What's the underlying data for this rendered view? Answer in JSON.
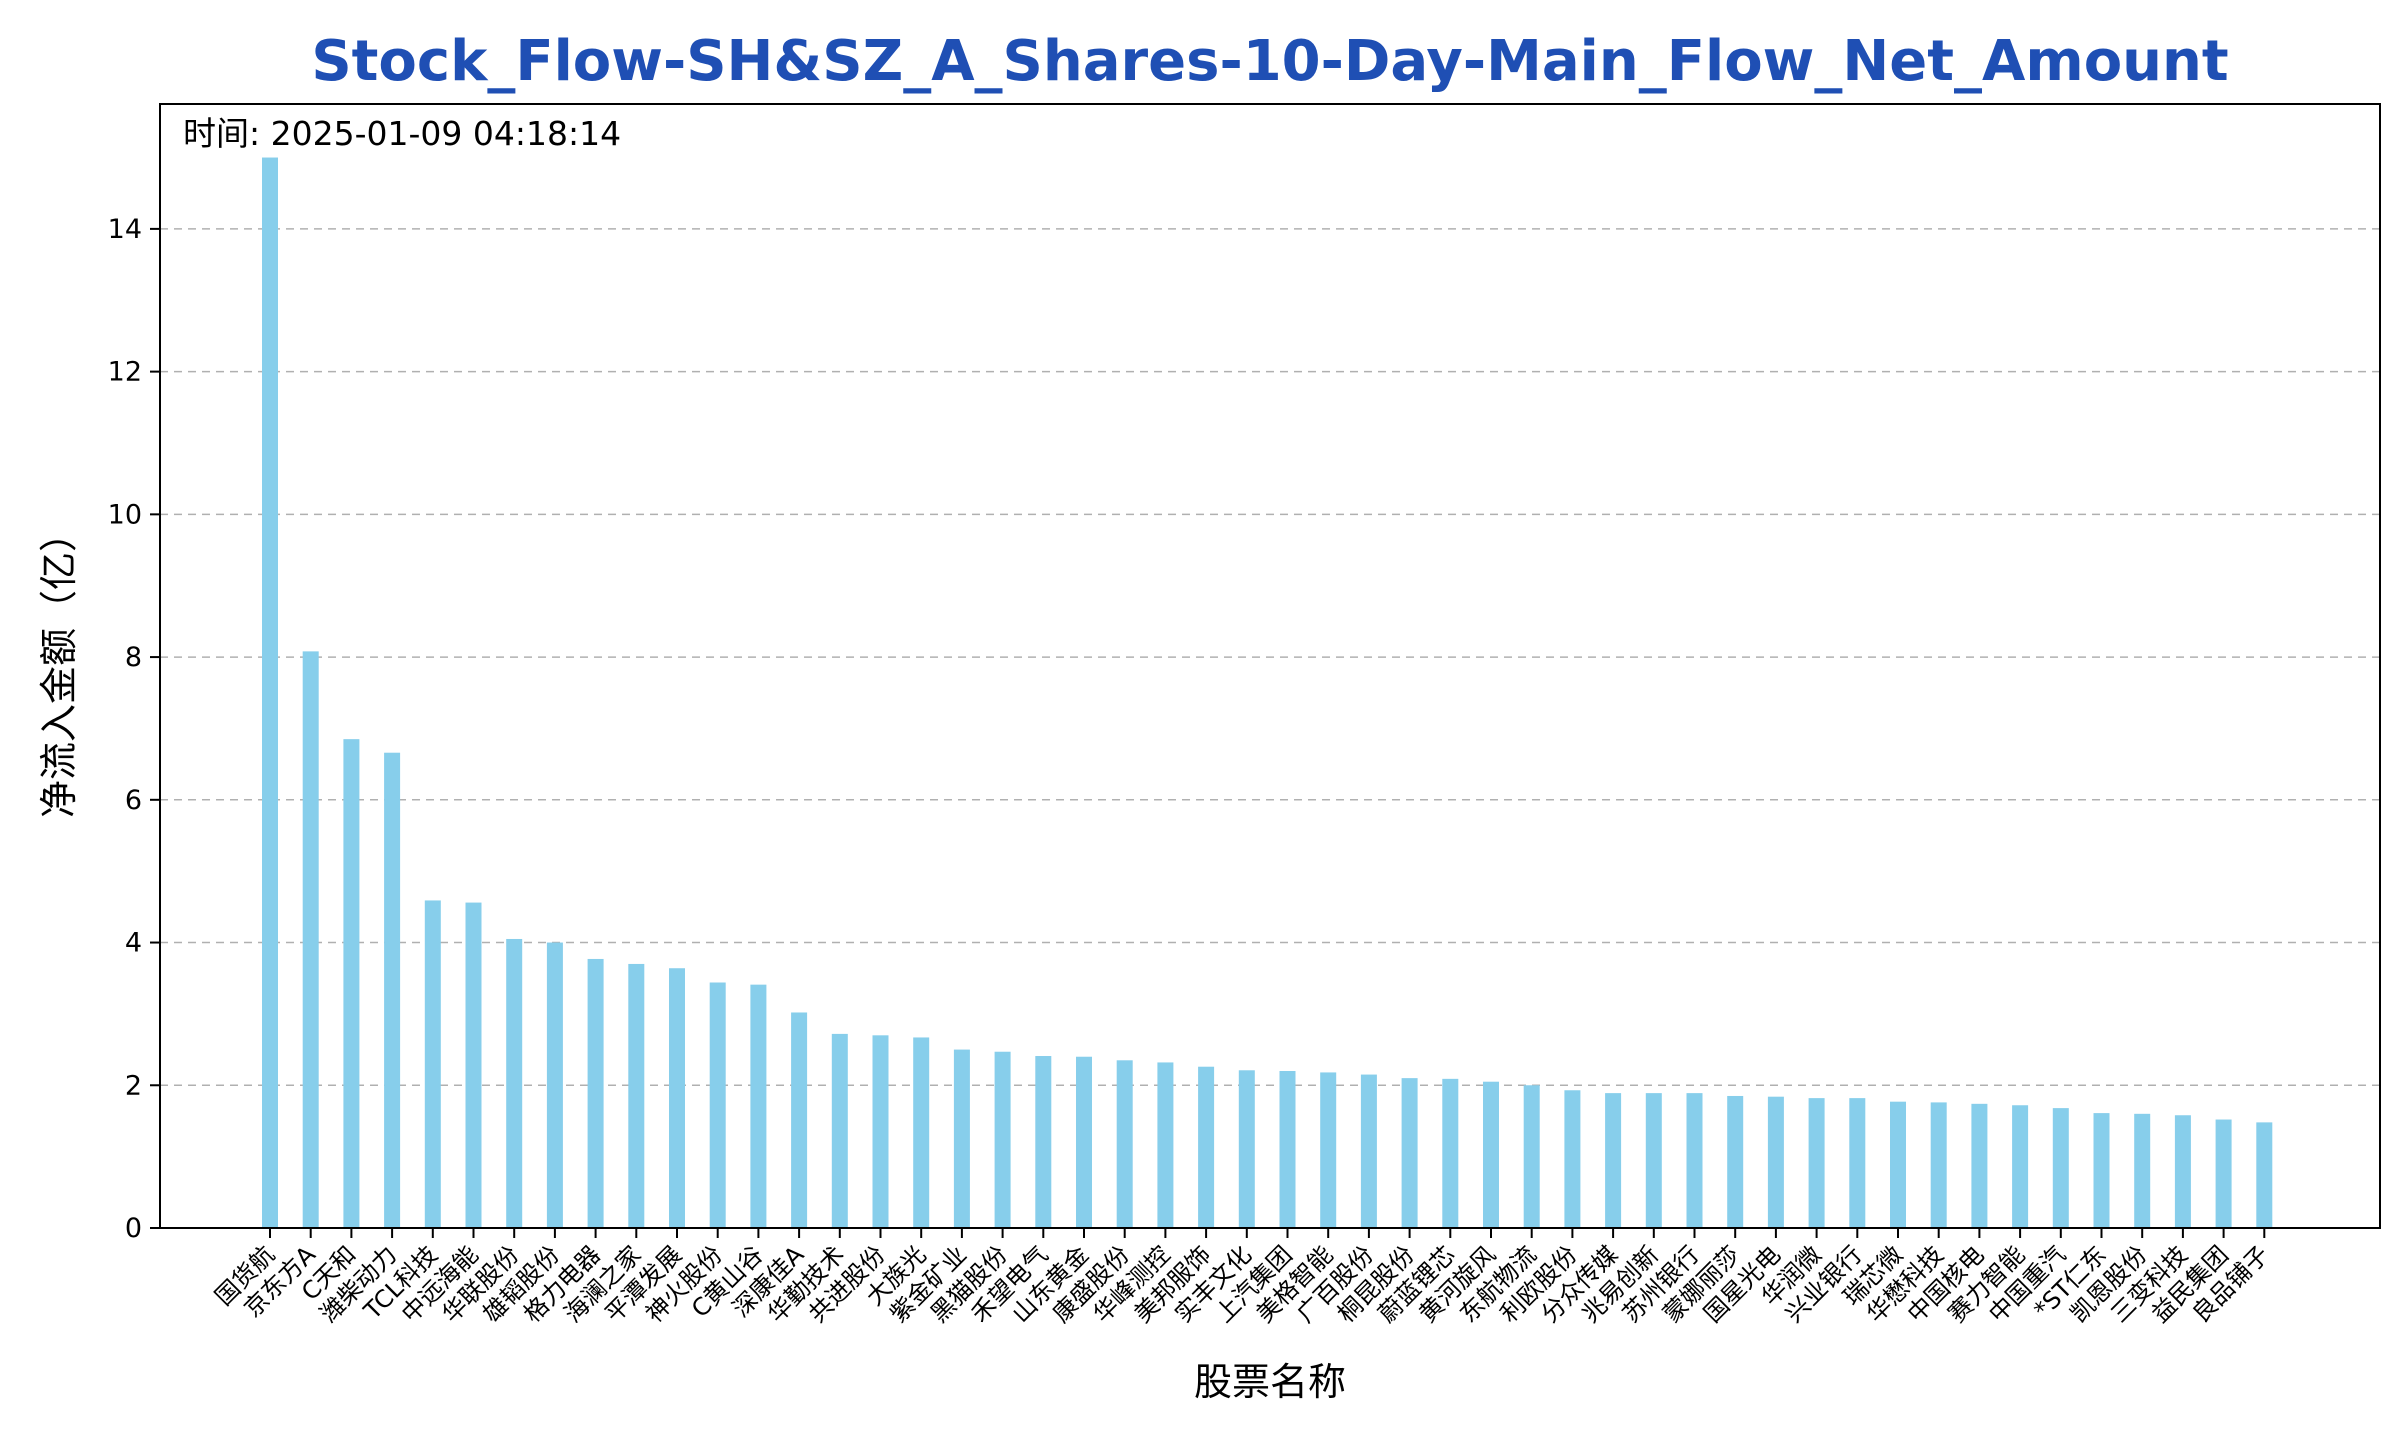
{
  "chart_data": {
    "type": "bar",
    "title": "Stock_Flow-SH&SZ_A_Shares-10-Day-Main_Flow_Net_Amount",
    "xlabel": "股票名称",
    "ylabel": "净流入金额（亿）",
    "annotation": "时间: 2025-01-09 04:18:14",
    "ylim": [
      0,
      15.75
    ],
    "yticks": [
      0,
      2,
      4,
      6,
      8,
      10,
      12,
      14
    ],
    "grid": "y-dashed",
    "bar_color": "#87ceeb",
    "categories": [
      "国货航",
      "京东方A",
      "C天和",
      "潍柴动力",
      "TCL科技",
      "中远海能",
      "华联股份",
      "雄韬股份",
      "格力电器",
      "海澜之家",
      "平潭发展",
      "神火股份",
      "C黄山谷",
      "深康佳A",
      "华勤技术",
      "共进股份",
      "大族光",
      "紫金矿业",
      "黑猫股份",
      "禾望电气",
      "山东黄金",
      "康盛股份",
      "华峰测控",
      "美邦服饰",
      "实丰文化",
      "上汽集团",
      "美格智能",
      "广百股份",
      "桐昆股份",
      "蔚蓝锂芯",
      "黄河旋风",
      "东航物流",
      "利欧股份",
      "分众传媒",
      "兆易创新",
      "苏州银行",
      "蒙娜丽莎",
      "国星光电",
      "华润微",
      "兴业银行",
      "瑞芯微",
      "华懋科技",
      "中国核电",
      "赛力智能",
      "中国重汽",
      "*ST仁东",
      "凯恩股份",
      "三变科技",
      "益民集团",
      "良品铺子"
    ],
    "values": [
      15.0,
      8.08,
      6.85,
      6.66,
      4.59,
      4.56,
      4.05,
      4.0,
      3.77,
      3.7,
      3.64,
      3.44,
      3.41,
      3.02,
      2.72,
      2.7,
      2.67,
      2.5,
      2.47,
      2.41,
      2.4,
      2.35,
      2.32,
      2.26,
      2.21,
      2.2,
      2.18,
      2.15,
      2.1,
      2.09,
      2.05,
      2.0,
      1.93,
      1.89,
      1.89,
      1.89,
      1.85,
      1.84,
      1.82,
      1.82,
      1.77,
      1.76,
      1.74,
      1.72,
      1.68,
      1.61,
      1.6,
      1.58,
      1.52,
      1.48
    ]
  }
}
